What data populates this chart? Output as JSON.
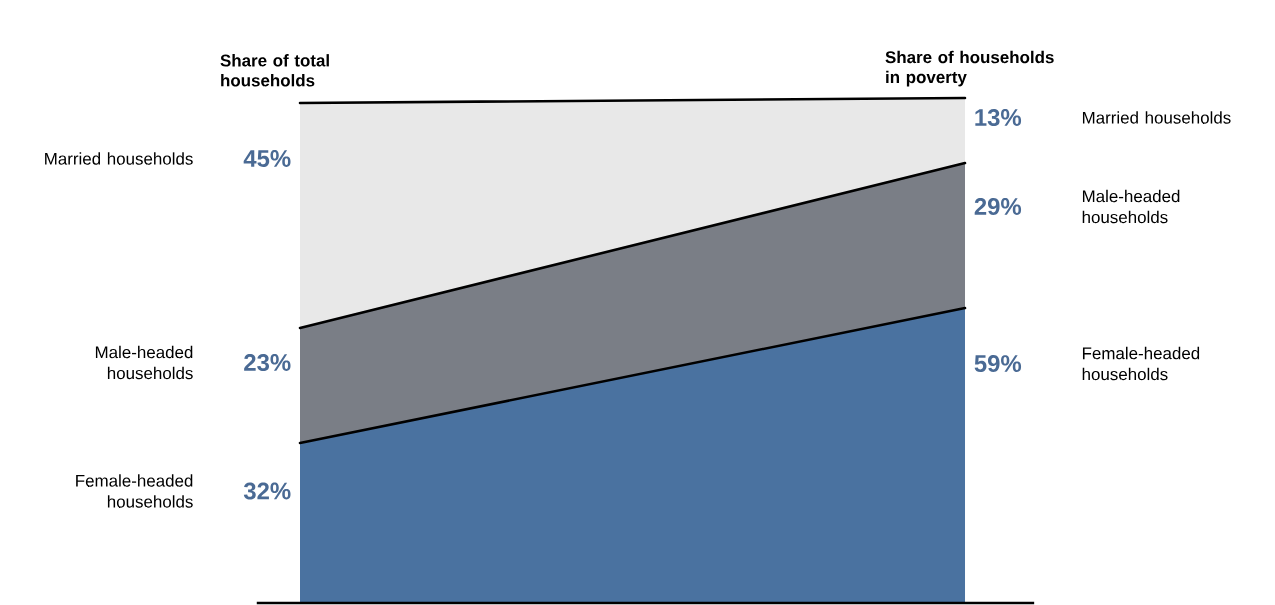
{
  "chart_data": {
    "type": "area",
    "stacked": true,
    "categories": [
      "Share of total households",
      "Share of households in poverty"
    ],
    "series": [
      {
        "name": "Female-headed households",
        "color": "#4a72a0",
        "values": [
          32,
          59
        ],
        "value_labels": [
          "32%",
          "59%"
        ]
      },
      {
        "name": "Male-headed households",
        "color": "#7a7e86",
        "values": [
          23,
          29
        ],
        "value_labels": [
          "23%",
          "29%"
        ]
      },
      {
        "name": "Married households",
        "color": "#e8e8e8",
        "values": [
          45,
          13
        ],
        "value_labels": [
          "45%",
          "13%"
        ]
      }
    ]
  }
}
